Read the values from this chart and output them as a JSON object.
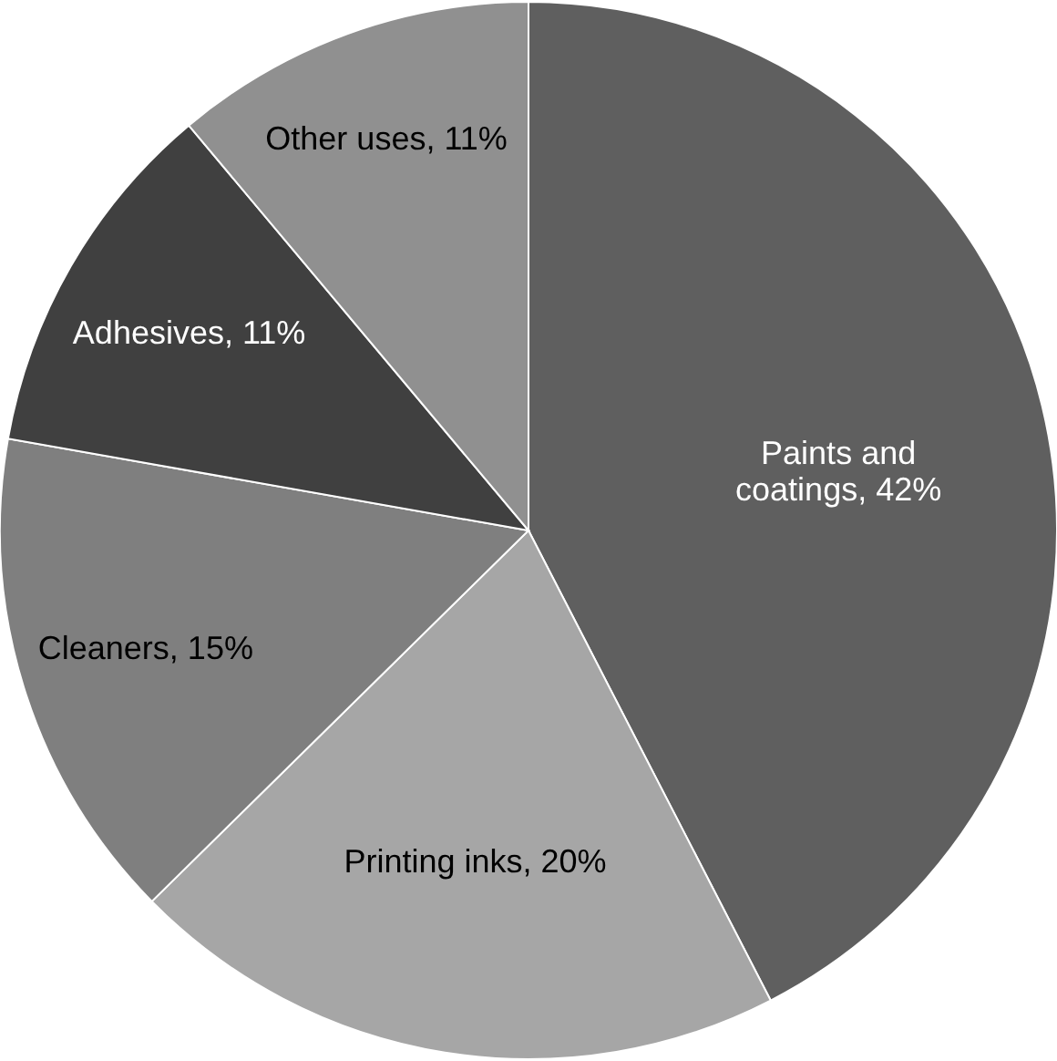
{
  "chart_data": {
    "type": "pie",
    "categories": [
      "Paints and coatings",
      "Printing inks",
      "Cleaners",
      "Adhesives",
      "Other uses"
    ],
    "values": [
      42,
      20,
      15,
      11,
      11
    ],
    "value_labels": [
      "42%",
      "20%",
      "15%",
      "11%",
      "11%"
    ],
    "colors": [
      "#5f5f5f",
      "#a6a6a6",
      "#7f7f7f",
      "#404040",
      "#909090"
    ]
  }
}
